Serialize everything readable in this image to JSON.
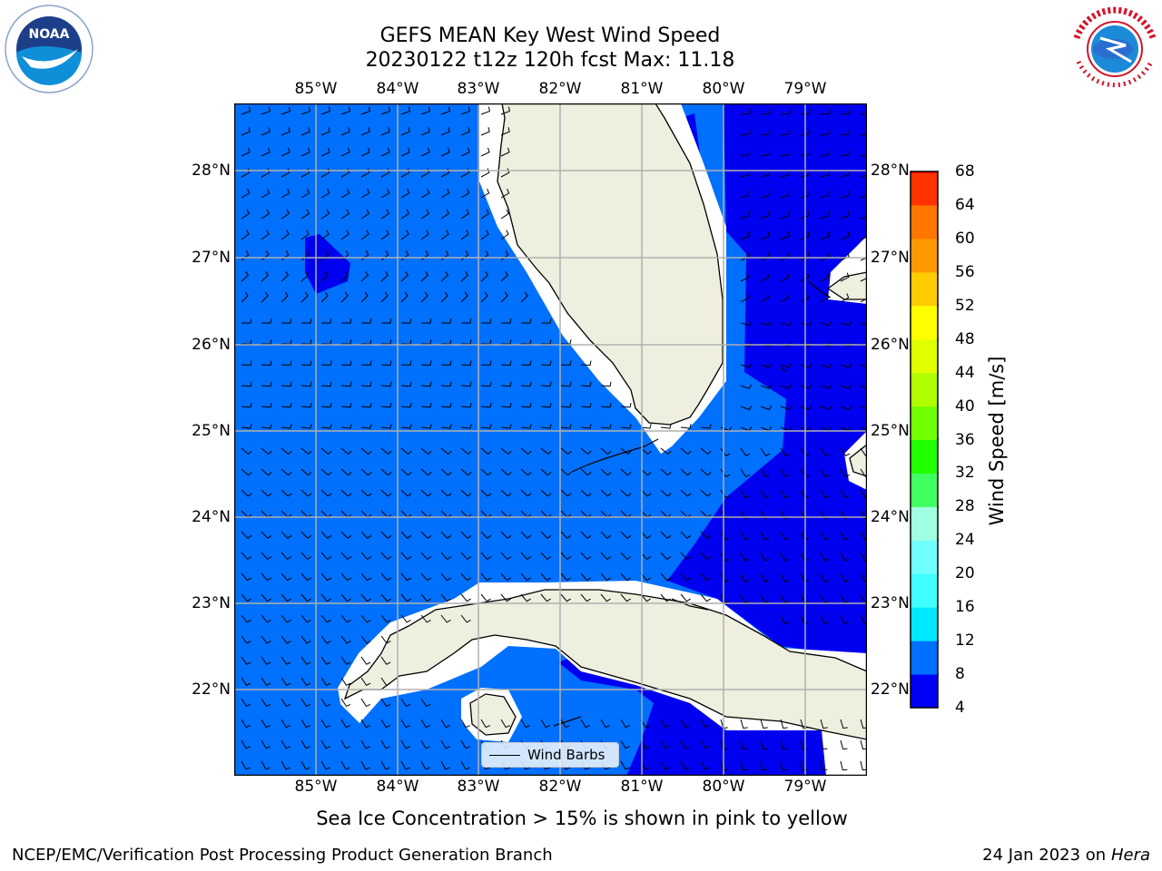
{
  "title_line1": "GEFS MEAN Key West Wind Speed",
  "title_line2": "20230122 t12z 120h fcst   Max: 11.18",
  "logos": {
    "left": "noaa-logo",
    "right": "national-weather-service-logo"
  },
  "lon_labels": [
    "85°W",
    "84°W",
    "83°W",
    "82°W",
    "81°W",
    "80°W",
    "79°W"
  ],
  "lat_labels": [
    "28°N",
    "27°N",
    "26°N",
    "25°N",
    "24°N",
    "23°N",
    "22°N"
  ],
  "colorbar": {
    "title": "Wind Speed [m/s]",
    "ticks": [
      "68",
      "64",
      "60",
      "56",
      "52",
      "48",
      "44",
      "40",
      "36",
      "32",
      "28",
      "24",
      "20",
      "16",
      "12",
      "8",
      "4"
    ],
    "colors": [
      "#0000f5",
      "#0070ff",
      "#00e8ff",
      "#40ffff",
      "#70ffff",
      "#a0ffe0",
      "#40ff60",
      "#20ff00",
      "#70ff00",
      "#b0ff00",
      "#e0ff00",
      "#ffff00",
      "#ffcc00",
      "#ff9900",
      "#ff7700",
      "#ff3300",
      "#ff0000"
    ]
  },
  "map_colors": {
    "light_blue": "#0070ff",
    "dark_blue": "#0000f0",
    "land": "#efefdf",
    "grid": "#b0b0b0"
  },
  "legend_label": "Wind Barbs",
  "subnote": "Sea Ice Concentration > 15% is shown in pink to yellow",
  "footer_left": "NCEP/EMC/Verification Post Processing Product Generation Branch",
  "footer_date": "24 Jan 2023 on ",
  "footer_host": "Hera"
}
